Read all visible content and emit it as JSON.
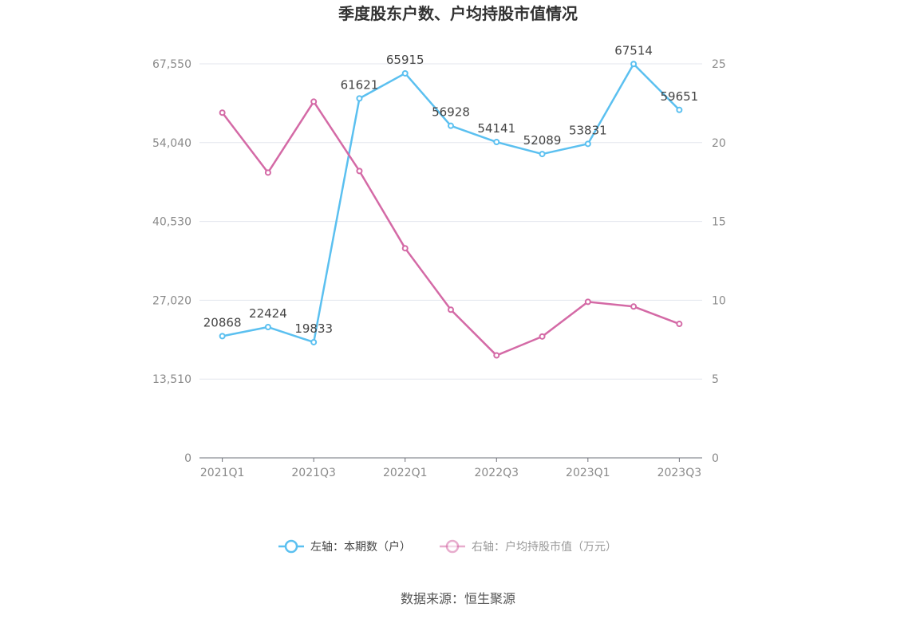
{
  "chart_data": {
    "type": "line",
    "title": "季度股东户数、户均持股市值情况",
    "categories": [
      "2021Q1",
      "2021Q2",
      "2021Q3",
      "2021Q4",
      "2022Q1",
      "2022Q2",
      "2022Q3",
      "2022Q4",
      "2023Q1",
      "2023Q2",
      "2023Q3"
    ],
    "x_tick_labels": [
      "2021Q1",
      "2021Q3",
      "2022Q1",
      "2022Q3",
      "2023Q1",
      "2023Q3"
    ],
    "left_axis": {
      "ticks": [
        "0",
        "13,510",
        "27,020",
        "40,530",
        "54,040",
        "67,550"
      ],
      "ylim": [
        0,
        67550
      ]
    },
    "right_axis": {
      "ticks": [
        "0",
        "5",
        "10",
        "15",
        "20",
        "25"
      ],
      "ylim": [
        0,
        25
      ]
    },
    "series": [
      {
        "name": "左轴：本期数（户）",
        "axis": "left",
        "color": "#5bc0f0",
        "values": [
          20868,
          22424,
          19833,
          61621,
          65915,
          56928,
          54141,
          52089,
          53831,
          67514,
          59651
        ],
        "labels": [
          "20868",
          "22424",
          "19833",
          "61621",
          "65915",
          "56928",
          "54141",
          "52089",
          "53831",
          "67514",
          "59651"
        ]
      },
      {
        "name": "右轴：户均持股市值（万元）",
        "axis": "right",
        "color": "#d46aa6",
        "values": [
          21.9,
          18.1,
          22.6,
          18.2,
          13.3,
          9.4,
          6.5,
          7.7,
          9.9,
          9.6,
          8.5
        ]
      }
    ],
    "grid": true,
    "legend_position": "bottom"
  },
  "source": "数据来源：恒生聚源"
}
